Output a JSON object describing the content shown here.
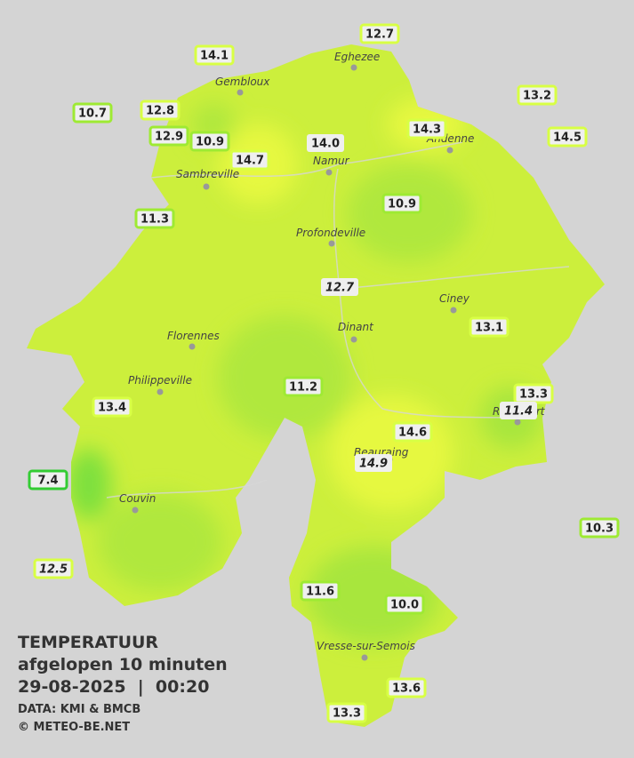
{
  "map": {
    "stations": [
      "12.7",
      "14.1",
      "13.2",
      "10.7",
      "12.8",
      "14.3",
      "12.9",
      "10.9",
      "14.0",
      "14.5",
      "14.7",
      "10.9",
      "11.3",
      "12.7",
      "13.1",
      "11.2",
      "13.3",
      "11.4",
      "13.4",
      "14.6",
      "14.9",
      "7.4",
      "10.3",
      "12.5",
      "11.6",
      "10.0",
      "13.6",
      "13.3"
    ],
    "cities": [
      "Eghezee",
      "Gembloux",
      "Andenne",
      "Namur",
      "Sambreville",
      "Profondeville",
      "Ciney",
      "Dinant",
      "Florennes",
      "Philippeville",
      "Couvin",
      "Vresse-sur-Semois",
      "Beauraing",
      "Rochefort"
    ]
  },
  "legend": {
    "title": "TEMPERATUUR",
    "subtitle": "afgelopen 10 minuten",
    "datetime": "29-08-2025  |  00:20",
    "source": "DATA: KMI & BMCB",
    "credit": "© METEO-BE.NET"
  }
}
